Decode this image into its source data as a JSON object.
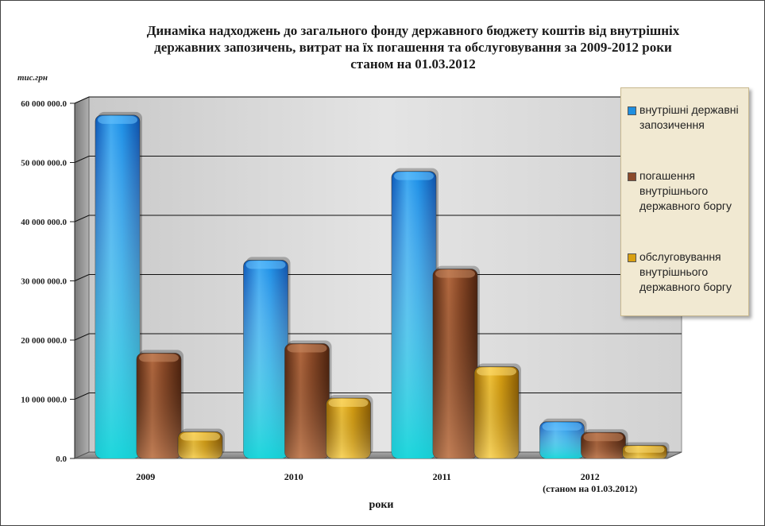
{
  "chart_data": {
    "type": "bar",
    "title_lines": [
      "Динаміка надходжень до загального фонду державного бюджету коштів від внутрішніх",
      "державних запозичень, витрат на їх погашення та обслуговування за 2009-2012 роки",
      "станом на 01.03.2012"
    ],
    "unit_label": "тис.грн",
    "xlabel": "роки",
    "categories": [
      "2009",
      "2010",
      "2011",
      "2012"
    ],
    "category_sublabels": [
      "",
      "",
      "",
      "(станом на 01.03.2012)"
    ],
    "y_ticks": [
      "0.0",
      "10 000 000.0",
      "20 000 000.0",
      "30 000 000.0",
      "40 000 000.0",
      "50 000 000.0",
      "60 000 000.0"
    ],
    "ylim": [
      0,
      60000000
    ],
    "grid": true,
    "legend_position": "right",
    "series": [
      {
        "name": "внутрішні державні запозичення",
        "color": "#1f8fe0",
        "values": [
          58000000,
          33500000,
          48500000,
          6200000
        ]
      },
      {
        "name": "погашення внутрішнього державного боргу",
        "color": "#8b4a2a",
        "values": [
          17800000,
          19400000,
          32000000,
          4400000
        ]
      },
      {
        "name": "обслуговування внутрішнього державного боргу",
        "color": "#d9a011",
        "values": [
          4500000,
          10200000,
          15500000,
          2200000
        ]
      }
    ]
  }
}
